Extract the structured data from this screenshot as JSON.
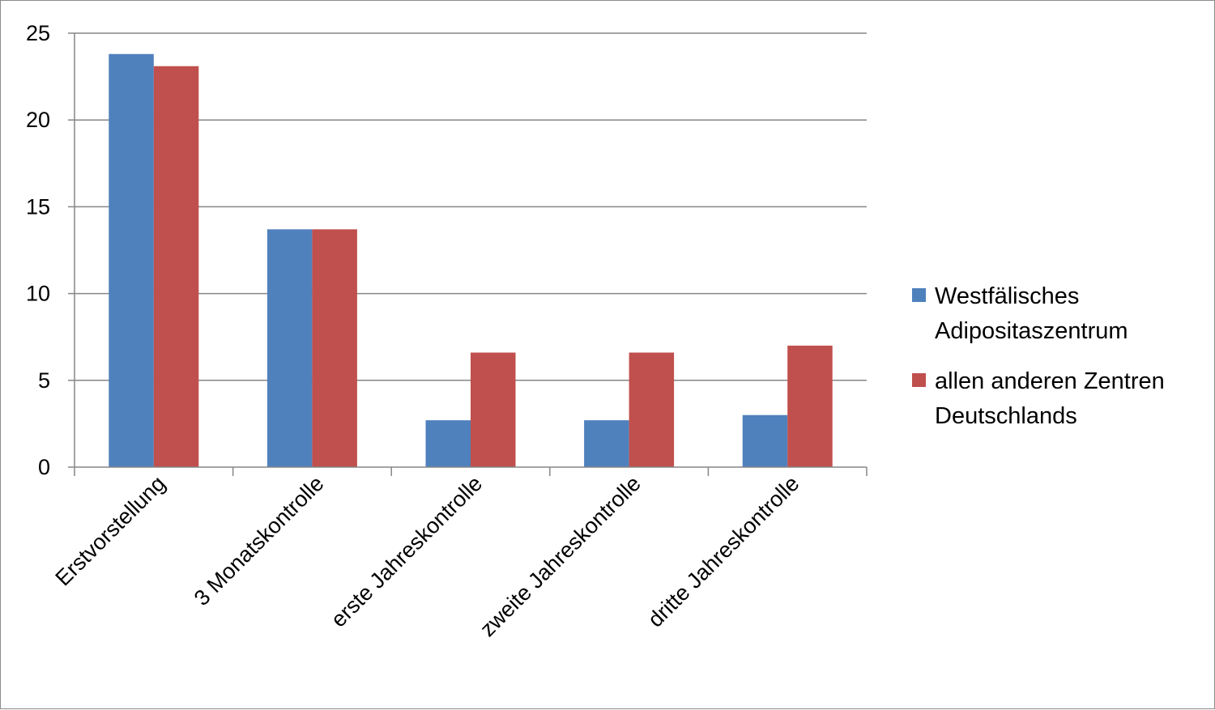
{
  "chart_data": {
    "type": "bar",
    "title": "",
    "xlabel": "",
    "ylabel": "",
    "ylim": [
      0,
      25
    ],
    "yticks": [
      0,
      5,
      10,
      15,
      20,
      25
    ],
    "grid": true,
    "legend_position": "right",
    "categories": [
      "Erstvorstellung",
      "3 Monatskontrolle",
      "erste Jahreskontrolle",
      "zweite Jahreskontrolle",
      "dritte Jahreskontrolle"
    ],
    "series": [
      {
        "name_lines": [
          "Westfälisches",
          "Adipositaszentrum"
        ],
        "color": "#4f81bd",
        "values": [
          23.8,
          13.7,
          2.7,
          2.7,
          3.0
        ]
      },
      {
        "name_lines": [
          "allen anderen Zentren",
          "Deutschlands"
        ],
        "color": "#c0504d",
        "values": [
          23.1,
          13.7,
          6.6,
          6.6,
          7.0
        ]
      }
    ]
  }
}
